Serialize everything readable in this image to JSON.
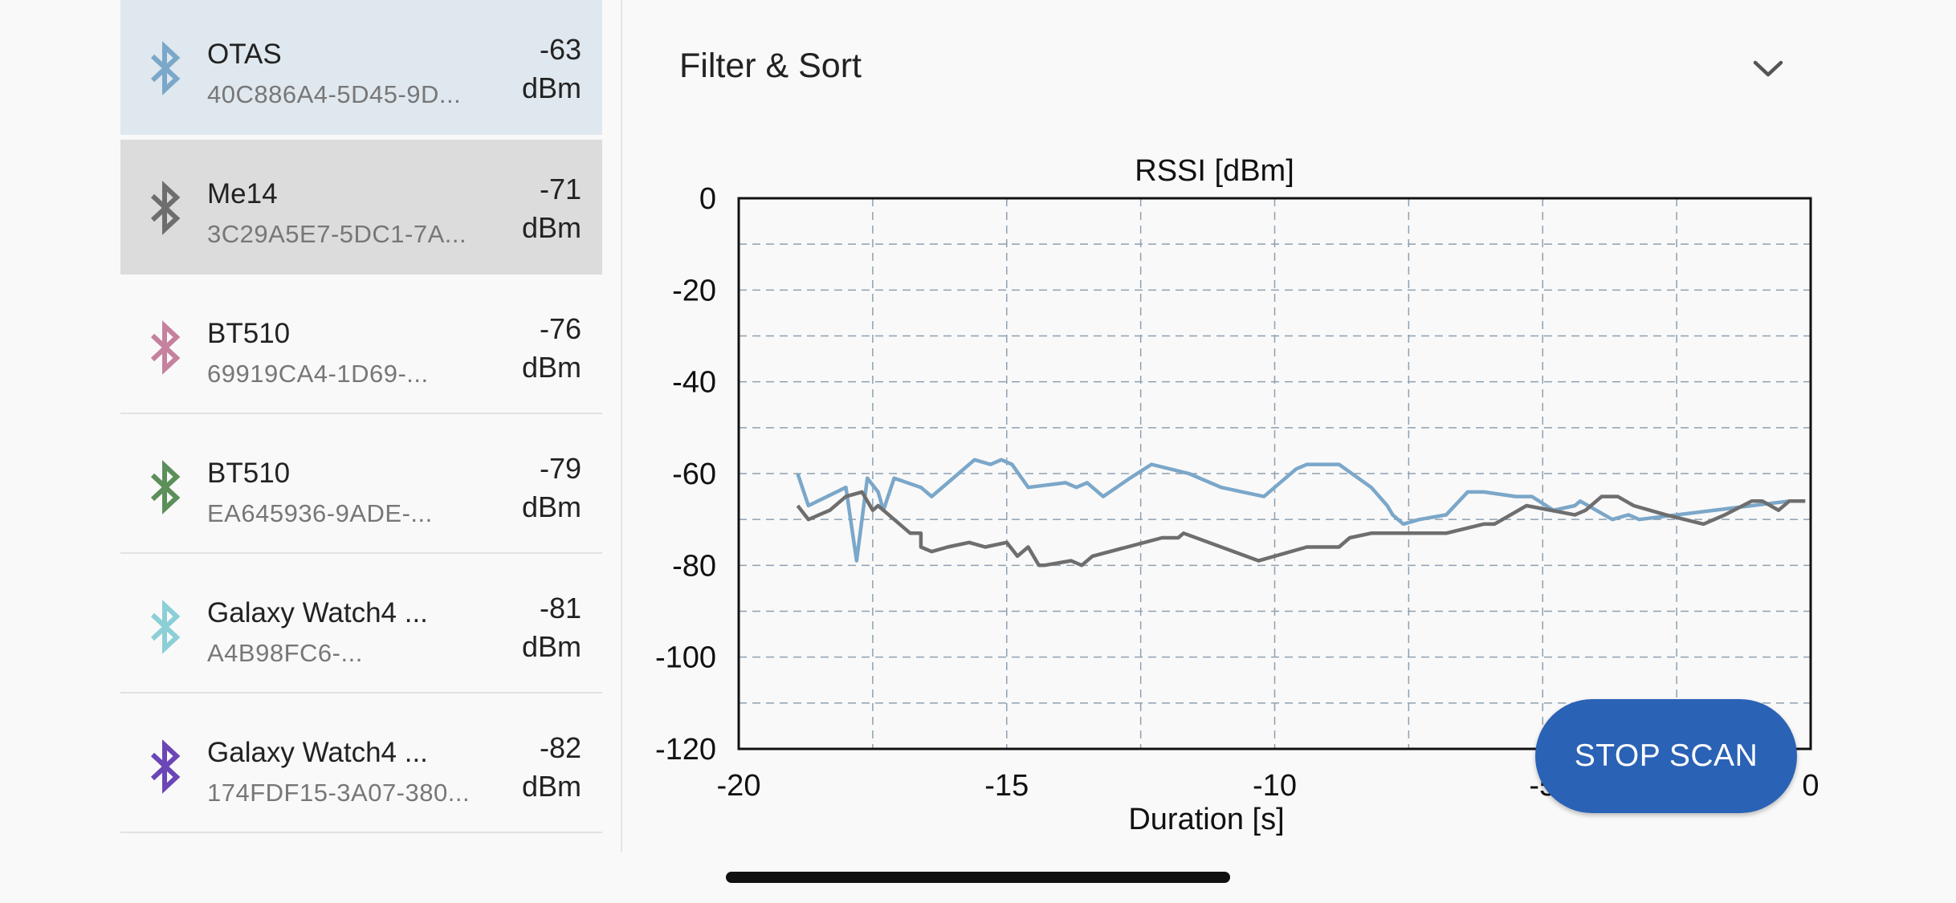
{
  "devices": [
    {
      "name": "OTAS",
      "id": "40C886A4-5D45-9D...",
      "rssi": "-63",
      "unit": "dBm",
      "color": "#7ba7c9",
      "selected_bg": "#dfe8ef",
      "icon": "bluetooth-icon"
    },
    {
      "name": "Me14",
      "id": "3C29A5E7-5DC1-7A...",
      "rssi": "-71",
      "unit": "dBm",
      "color": "#6e6e6e",
      "selected_bg": "#dcdcdc",
      "icon": "bluetooth-icon"
    },
    {
      "name": "BT510",
      "id": "69919CA4-1D69-...",
      "rssi": "-76",
      "unit": "dBm",
      "color": "#c5819e",
      "selected_bg": "",
      "icon": "bluetooth-icon"
    },
    {
      "name": "BT510",
      "id": "EA645936-9ADE-...",
      "rssi": "-79",
      "unit": "dBm",
      "color": "#5c8f5a",
      "selected_bg": "",
      "icon": "bluetooth-icon"
    },
    {
      "name": "Galaxy Watch4 ...",
      "id": "A4B98FC6-...",
      "rssi": "-81",
      "unit": "dBm",
      "color": "#8ccfd6",
      "selected_bg": "",
      "icon": "bluetooth-icon"
    },
    {
      "name": "Galaxy Watch4 ...",
      "id": "174FDF15-3A07-380...",
      "rssi": "-82",
      "unit": "dBm",
      "color": "#6b46b6",
      "selected_bg": "",
      "icon": "bluetooth-icon"
    }
  ],
  "filter": {
    "title": "Filter & Sort",
    "icon": "chevron-down-icon"
  },
  "scan_button": {
    "label": "STOP SCAN",
    "color": "#2a62b5"
  },
  "chart_data": {
    "type": "line",
    "title": "RSSI [dBm]",
    "xlabel": "Duration [s]",
    "ylabel": "",
    "xlim": [
      -20,
      0
    ],
    "ylim": [
      -120,
      0
    ],
    "x_ticks": [
      "-20",
      "-15",
      "-10",
      "-5",
      "0"
    ],
    "y_ticks": [
      "0",
      "-20",
      "-40",
      "-60",
      "-80",
      "-100",
      "-120"
    ],
    "grid": true,
    "series": [
      {
        "color": "#7ba7c9",
        "x": [
          -18.9,
          -18.7,
          -18.0,
          -17.8,
          -17.6,
          -17.4,
          -17.3,
          -17.1,
          -16.6,
          -16.4,
          -16.3,
          -15.9,
          -15.6,
          -15.3,
          -15.1,
          -14.9,
          -14.6,
          -13.9,
          -13.7,
          -13.5,
          -13.2,
          -12.7,
          -12.3,
          -11.6,
          -11.0,
          -10.6,
          -10.2,
          -9.6,
          -9.4,
          -8.8,
          -8.2,
          -7.9,
          -7.8,
          -7.6,
          -7.3,
          -6.8,
          -6.4,
          -6.1,
          -5.5,
          -5.2,
          -4.8,
          -4.4,
          -4.3,
          -3.7,
          -3.4,
          -3.2,
          -0.4
        ],
        "y": [
          -60,
          -67,
          -63,
          -79,
          -61,
          -64,
          -68,
          -61,
          -63,
          -65,
          -64,
          -60,
          -57,
          -58,
          -57,
          -58,
          -63,
          -62,
          -63,
          -62,
          -65,
          -61,
          -58,
          -60,
          -63,
          -64,
          -65,
          -59,
          -58,
          -58,
          -63,
          -67,
          -69,
          -71,
          -70,
          -69,
          -64,
          -64,
          -65,
          -65,
          -68,
          -67,
          -66,
          -70,
          -69,
          -70,
          -66
        ]
      },
      {
        "color": "#6e6e6e",
        "x": [
          -18.9,
          -18.7,
          -18.3,
          -18.0,
          -17.7,
          -17.5,
          -17.4,
          -17.1,
          -16.8,
          -16.6,
          -16.6,
          -16.4,
          -16.1,
          -15.7,
          -15.4,
          -15.0,
          -14.8,
          -14.6,
          -14.4,
          -14.3,
          -13.8,
          -13.6,
          -13.4,
          -12.1,
          -11.8,
          -11.7,
          -10.3,
          -9.4,
          -9.1,
          -8.8,
          -8.6,
          -8.2,
          -7.6,
          -7.1,
          -6.8,
          -6.1,
          -5.9,
          -5.3,
          -4.4,
          -4.2,
          -3.9,
          -3.6,
          -3.3,
          -2.7,
          -2.0,
          -1.6,
          -1.1,
          -0.9,
          -0.6,
          -0.4,
          -0.1
        ],
        "y": [
          -67,
          -70,
          -68,
          -65,
          -64,
          -68,
          -67,
          -70,
          -73,
          -73,
          -76,
          -77,
          -76,
          -75,
          -76,
          -75,
          -78,
          -76,
          -80,
          -80,
          -79,
          -80,
          -78,
          -74,
          -74,
          -73,
          -79,
          -76,
          -76,
          -76,
          -74,
          -73,
          -73,
          -73,
          -73,
          -71,
          -71,
          -67,
          -69,
          -68,
          -65,
          -65,
          -67,
          -69,
          -71,
          -69,
          -66,
          -66,
          -68,
          -66,
          -66
        ]
      }
    ]
  }
}
